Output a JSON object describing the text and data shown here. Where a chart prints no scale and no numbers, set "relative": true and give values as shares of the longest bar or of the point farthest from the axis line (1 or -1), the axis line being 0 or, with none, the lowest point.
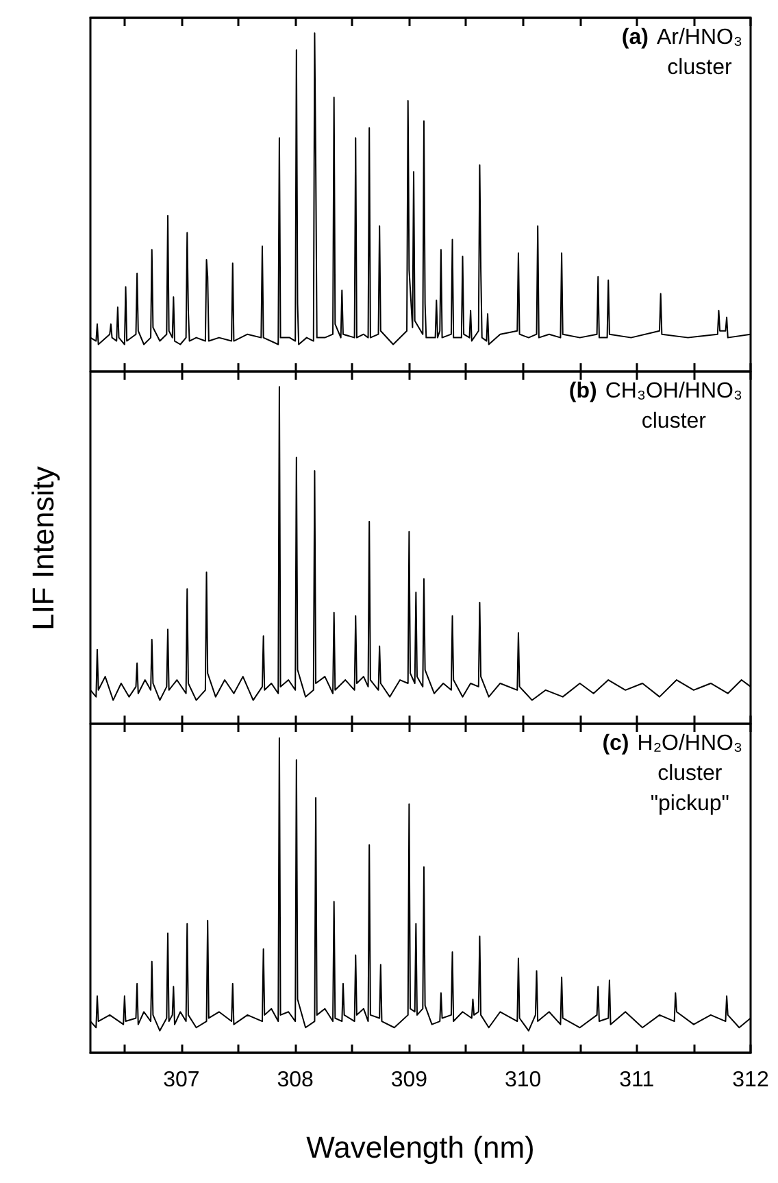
{
  "chart_data": [
    {
      "type": "line",
      "relative": true,
      "tick_labels": false,
      "annotations": [
        "(a)",
        "Ar/HNO₃",
        "cluster"
      ],
      "xlim": [
        306.2,
        312
      ],
      "xticks": [
        {
          "value": 306.5,
          "label": null
        },
        307,
        {
          "value": 307.5,
          "label": null
        },
        308,
        {
          "value": 308.5,
          "label": null
        },
        309,
        {
          "value": 309.5,
          "label": null
        },
        310,
        {
          "value": 310.5,
          "label": null
        },
        311,
        {
          "value": 311.5,
          "label": null
        },
        312
      ],
      "color": "#000000",
      "x": [
        306.2,
        306.25,
        306.26,
        306.27,
        306.37,
        306.38,
        306.39,
        306.43,
        306.44,
        306.45,
        306.5,
        306.51,
        306.52,
        306.6,
        306.61,
        306.62,
        306.67,
        306.73,
        306.74,
        306.75,
        306.81,
        306.87,
        306.88,
        306.89,
        306.92,
        306.93,
        306.94,
        306.99,
        307.04,
        307.05,
        307.06,
        307.07,
        307.13,
        307.21,
        307.22,
        307.23,
        307.24,
        307.33,
        307.44,
        307.45,
        307.46,
        307.58,
        307.7,
        307.71,
        307.72,
        307.85,
        307.86,
        307.87,
        307.95,
        308.0,
        308.01,
        308.02,
        308.03,
        308.1,
        308.16,
        308.17,
        308.18,
        308.19,
        308.26,
        308.33,
        308.34,
        308.35,
        308.4,
        308.41,
        308.42,
        308.52,
        308.53,
        308.54,
        308.6,
        308.64,
        308.65,
        308.66,
        308.73,
        308.74,
        308.75,
        308.86,
        308.98,
        308.99,
        309.0,
        309.03,
        309.04,
        309.05,
        309.12,
        309.13,
        309.14,
        309.15,
        309.23,
        309.24,
        309.25,
        309.27,
        309.28,
        309.29,
        309.37,
        309.38,
        309.39,
        309.46,
        309.47,
        309.48,
        309.53,
        309.54,
        309.55,
        309.61,
        309.62,
        309.63,
        309.64,
        309.68,
        309.69,
        309.7,
        309.8,
        309.95,
        309.96,
        309.97,
        310.05,
        310.12,
        310.13,
        310.14,
        310.23,
        310.33,
        310.34,
        310.35,
        310.5,
        310.65,
        310.66,
        310.67,
        310.74,
        310.75,
        310.76,
        310.95,
        311.2,
        311.21,
        311.22,
        311.45,
        311.71,
        311.72,
        311.73,
        311.78,
        311.79,
        311.8,
        312
      ],
      "values": [
        0.1,
        0.09,
        0.14,
        0.08,
        0.11,
        0.14,
        0.1,
        0.09,
        0.19,
        0.1,
        0.08,
        0.25,
        0.09,
        0.11,
        0.29,
        0.12,
        0.08,
        0.1,
        0.36,
        0.13,
        0.09,
        0.11,
        0.46,
        0.12,
        0.1,
        0.22,
        0.09,
        0.08,
        0.1,
        0.41,
        0.18,
        0.09,
        0.1,
        0.09,
        0.33,
        0.28,
        0.09,
        0.1,
        0.09,
        0.32,
        0.09,
        0.11,
        0.1,
        0.37,
        0.1,
        0.08,
        0.69,
        0.1,
        0.1,
        0.09,
        0.95,
        0.2,
        0.08,
        0.1,
        0.09,
        1.0,
        0.6,
        0.1,
        0.1,
        0.11,
        0.81,
        0.14,
        0.1,
        0.24,
        0.11,
        0.1,
        0.69,
        0.1,
        0.11,
        0.1,
        0.72,
        0.1,
        0.11,
        0.43,
        0.12,
        0.08,
        0.12,
        0.8,
        0.3,
        0.13,
        0.59,
        0.15,
        0.11,
        0.74,
        0.2,
        0.1,
        0.1,
        0.21,
        0.1,
        0.12,
        0.36,
        0.1,
        0.11,
        0.39,
        0.1,
        0.1,
        0.34,
        0.11,
        0.1,
        0.18,
        0.09,
        0.12,
        0.61,
        0.3,
        0.1,
        0.09,
        0.17,
        0.08,
        0.11,
        0.12,
        0.35,
        0.11,
        0.1,
        0.11,
        0.43,
        0.1,
        0.11,
        0.1,
        0.35,
        0.11,
        0.1,
        0.11,
        0.28,
        0.1,
        0.1,
        0.27,
        0.11,
        0.1,
        0.12,
        0.23,
        0.11,
        0.1,
        0.11,
        0.18,
        0.12,
        0.12,
        0.16,
        0.1,
        0.11
      ]
    },
    {
      "type": "line",
      "relative": true,
      "tick_labels": false,
      "ylabel": "LIF Intensity",
      "annotations": [
        "(b)",
        "CH₃OH/HNO₃",
        "cluster"
      ],
      "xlim": [
        306.2,
        312
      ],
      "xticks": [
        {
          "value": 306.5,
          "label": null
        },
        307,
        {
          "value": 307.5,
          "label": null
        },
        308,
        {
          "value": 308.5,
          "label": null
        },
        309,
        {
          "value": 309.5,
          "label": null
        },
        310,
        {
          "value": 310.5,
          "label": null
        },
        311,
        {
          "value": 311.5,
          "label": null
        },
        312
      ],
      "color": "#000000",
      "x": [
        306.2,
        306.25,
        306.26,
        306.27,
        306.33,
        306.4,
        306.47,
        306.54,
        306.6,
        306.61,
        306.62,
        306.68,
        306.73,
        306.74,
        306.75,
        306.81,
        306.87,
        306.88,
        306.89,
        306.96,
        307.04,
        307.05,
        307.06,
        307.13,
        307.21,
        307.22,
        307.23,
        307.3,
        307.38,
        307.46,
        307.54,
        307.63,
        307.71,
        307.72,
        307.73,
        307.79,
        307.85,
        307.86,
        307.87,
        307.94,
        308.0,
        308.01,
        308.02,
        308.09,
        308.16,
        308.17,
        308.18,
        308.26,
        308.33,
        308.34,
        308.35,
        308.44,
        308.52,
        308.53,
        308.54,
        308.6,
        308.64,
        308.65,
        308.66,
        308.73,
        308.74,
        308.75,
        308.83,
        308.92,
        308.99,
        309.0,
        309.01,
        309.05,
        309.06,
        309.07,
        309.12,
        309.13,
        309.14,
        309.22,
        309.3,
        309.37,
        309.38,
        309.39,
        309.47,
        309.54,
        309.61,
        309.62,
        309.63,
        309.7,
        309.8,
        309.95,
        309.96,
        309.97,
        310.08,
        310.2,
        310.35,
        310.5,
        310.62,
        310.75,
        310.9,
        311.05,
        311.2,
        311.35,
        311.5,
        311.65,
        311.8,
        311.92,
        312
      ],
      "values": [
        0.1,
        0.08,
        0.22,
        0.1,
        0.14,
        0.07,
        0.12,
        0.08,
        0.11,
        0.18,
        0.09,
        0.13,
        0.1,
        0.25,
        0.12,
        0.07,
        0.11,
        0.28,
        0.1,
        0.13,
        0.09,
        0.4,
        0.12,
        0.07,
        0.1,
        0.45,
        0.15,
        0.08,
        0.13,
        0.09,
        0.14,
        0.07,
        0.11,
        0.26,
        0.1,
        0.12,
        0.09,
        1.0,
        0.11,
        0.13,
        0.1,
        0.79,
        0.16,
        0.08,
        0.1,
        0.75,
        0.12,
        0.14,
        0.09,
        0.33,
        0.1,
        0.13,
        0.1,
        0.32,
        0.12,
        0.14,
        0.11,
        0.6,
        0.13,
        0.1,
        0.23,
        0.12,
        0.08,
        0.13,
        0.12,
        0.57,
        0.15,
        0.12,
        0.39,
        0.14,
        0.11,
        0.43,
        0.16,
        0.09,
        0.12,
        0.1,
        0.32,
        0.13,
        0.08,
        0.12,
        0.11,
        0.36,
        0.14,
        0.08,
        0.12,
        0.1,
        0.27,
        0.11,
        0.07,
        0.1,
        0.08,
        0.12,
        0.09,
        0.13,
        0.1,
        0.12,
        0.08,
        0.13,
        0.1,
        0.12,
        0.09,
        0.13,
        0.11
      ]
    },
    {
      "type": "line",
      "relative": true,
      "tick_labels": "x",
      "xlabel": "Wavelength (nm)",
      "annotations": [
        "(c)",
        "H₂O/HNO₃",
        "cluster",
        "\"pickup\""
      ],
      "xlim": [
        306.2,
        312
      ],
      "xticks": [
        {
          "value": 306.5,
          "label": null
        },
        307,
        {
          "value": 307.5,
          "label": null
        },
        308,
        {
          "value": 308.5,
          "label": null
        },
        309,
        {
          "value": 309.5,
          "label": null
        },
        310,
        {
          "value": 310.5,
          "label": null
        },
        311,
        {
          "value": 311.5,
          "label": null
        },
        312
      ],
      "color": "#000000",
      "x": [
        306.2,
        306.25,
        306.26,
        306.27,
        306.37,
        306.49,
        306.5,
        306.51,
        306.6,
        306.61,
        306.62,
        306.67,
        306.73,
        306.74,
        306.75,
        306.81,
        306.87,
        306.88,
        306.89,
        306.92,
        306.93,
        306.94,
        306.99,
        307.04,
        307.05,
        307.06,
        307.13,
        307.22,
        307.23,
        307.24,
        307.33,
        307.44,
        307.45,
        307.46,
        307.58,
        307.71,
        307.72,
        307.73,
        307.79,
        307.85,
        307.86,
        307.87,
        307.94,
        308.0,
        308.01,
        308.02,
        308.09,
        308.17,
        308.18,
        308.19,
        308.26,
        308.33,
        308.34,
        308.35,
        308.41,
        308.42,
        308.43,
        308.52,
        308.53,
        308.54,
        308.6,
        308.64,
        308.65,
        308.66,
        308.74,
        308.75,
        308.76,
        308.87,
        308.99,
        309.0,
        309.01,
        309.05,
        309.06,
        309.07,
        309.12,
        309.13,
        309.14,
        309.2,
        309.27,
        309.28,
        309.29,
        309.37,
        309.38,
        309.39,
        309.47,
        309.55,
        309.56,
        309.57,
        309.61,
        309.62,
        309.63,
        309.7,
        309.8,
        309.95,
        309.96,
        309.97,
        310.05,
        310.11,
        310.12,
        310.13,
        310.23,
        310.33,
        310.34,
        310.35,
        310.5,
        310.65,
        310.66,
        310.67,
        310.75,
        310.76,
        310.77,
        310.9,
        311.05,
        311.2,
        311.33,
        311.34,
        311.35,
        311.5,
        311.65,
        311.78,
        311.79,
        311.8,
        311.9,
        312
      ],
      "values": [
        0.1,
        0.08,
        0.18,
        0.1,
        0.12,
        0.09,
        0.18,
        0.1,
        0.11,
        0.22,
        0.09,
        0.13,
        0.1,
        0.29,
        0.12,
        0.07,
        0.11,
        0.38,
        0.1,
        0.12,
        0.21,
        0.09,
        0.13,
        0.1,
        0.41,
        0.12,
        0.08,
        0.1,
        0.42,
        0.11,
        0.13,
        0.1,
        0.22,
        0.09,
        0.12,
        0.1,
        0.33,
        0.12,
        0.14,
        0.1,
        1.0,
        0.12,
        0.13,
        0.1,
        0.93,
        0.17,
        0.08,
        0.1,
        0.81,
        0.12,
        0.14,
        0.1,
        0.48,
        0.11,
        0.1,
        0.22,
        0.12,
        0.1,
        0.31,
        0.12,
        0.14,
        0.1,
        0.66,
        0.12,
        0.11,
        0.28,
        0.1,
        0.08,
        0.12,
        0.79,
        0.14,
        0.13,
        0.41,
        0.12,
        0.14,
        0.59,
        0.15,
        0.09,
        0.1,
        0.19,
        0.11,
        0.12,
        0.32,
        0.1,
        0.13,
        0.11,
        0.17,
        0.12,
        0.13,
        0.37,
        0.12,
        0.08,
        0.13,
        0.1,
        0.3,
        0.11,
        0.07,
        0.12,
        0.26,
        0.1,
        0.13,
        0.09,
        0.24,
        0.11,
        0.08,
        0.12,
        0.21,
        0.1,
        0.11,
        0.23,
        0.09,
        0.13,
        0.08,
        0.12,
        0.1,
        0.19,
        0.13,
        0.09,
        0.12,
        0.1,
        0.18,
        0.12,
        0.08,
        0.11
      ]
    }
  ]
}
